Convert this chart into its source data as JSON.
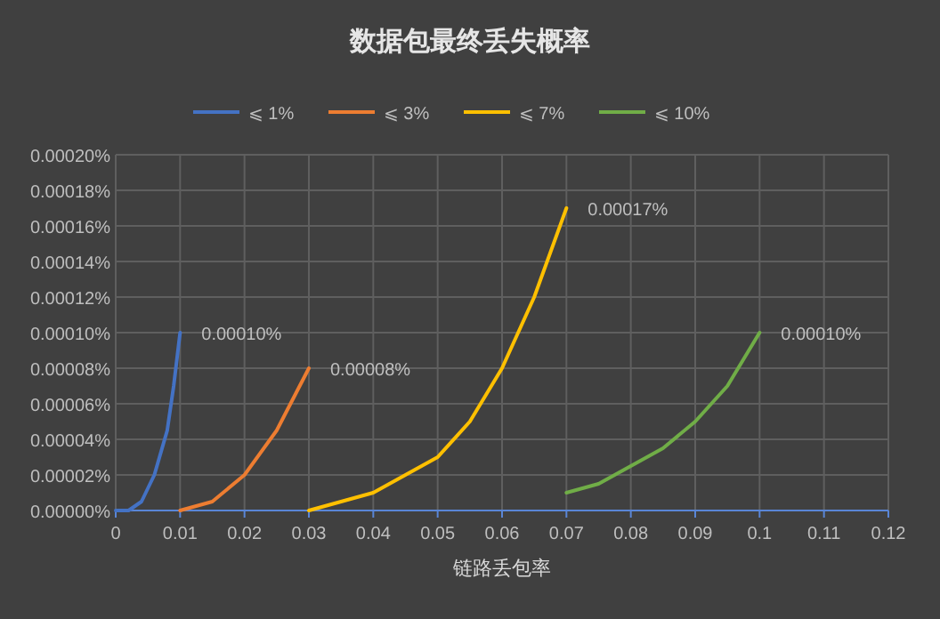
{
  "chart_data": {
    "type": "line",
    "title": "数据包最终丢失概率",
    "xlabel": "链路丢包率",
    "legend": "top",
    "grid": true,
    "xlim": [
      0,
      0.12
    ],
    "xticks": [
      0,
      0.01,
      0.02,
      0.03,
      0.04,
      0.05,
      0.06,
      0.07,
      0.08,
      0.09,
      0.1,
      0.11,
      0.12
    ],
    "ylim": [
      0,
      0.0002
    ],
    "yticks": [
      {
        "value": 0,
        "label": "0.00000%"
      },
      {
        "value": 2e-05,
        "label": "0.00002%"
      },
      {
        "value": 4e-05,
        "label": "0.00004%"
      },
      {
        "value": 6e-05,
        "label": "0.00006%"
      },
      {
        "value": 8e-05,
        "label": "0.00008%"
      },
      {
        "value": 0.0001,
        "label": "0.00010%"
      },
      {
        "value": 0.00012,
        "label": "0.00012%"
      },
      {
        "value": 0.00014,
        "label": "0.00014%"
      },
      {
        "value": 0.00016,
        "label": "0.00016%"
      },
      {
        "value": 0.00018,
        "label": "0.00018%"
      },
      {
        "value": 0.0002,
        "label": "0.00020%"
      }
    ],
    "series": [
      {
        "name": "⩽ 1%",
        "color": "#4472c4",
        "x": [
          0,
          0.002,
          0.004,
          0.006,
          0.008,
          0.009,
          0.01
        ],
        "values": [
          0,
          0,
          5e-06,
          2e-05,
          4.5e-05,
          7e-05,
          0.0001
        ]
      },
      {
        "name": "⩽ 3%",
        "color": "#ed7d31",
        "x": [
          0.01,
          0.015,
          0.02,
          0.025,
          0.03
        ],
        "values": [
          0,
          5e-06,
          2e-05,
          4.5e-05,
          8e-05
        ]
      },
      {
        "name": "⩽ 7%",
        "color": "#ffc000",
        "x": [
          0.03,
          0.035,
          0.04,
          0.045,
          0.05,
          0.055,
          0.06,
          0.065,
          0.07
        ],
        "values": [
          0,
          5e-06,
          1e-05,
          2e-05,
          3e-05,
          5e-05,
          8e-05,
          0.00012,
          0.00017
        ]
      },
      {
        "name": "⩽ 10%",
        "color": "#70ad47",
        "x": [
          0.07,
          0.075,
          0.08,
          0.085,
          0.09,
          0.095,
          0.1
        ],
        "values": [
          1e-05,
          1.5e-05,
          2.5e-05,
          3.5e-05,
          5e-05,
          7e-05,
          0.0001
        ]
      }
    ],
    "annotations": [
      {
        "text": "0.00010%",
        "x": 0.01,
        "y": 0.0001
      },
      {
        "text": "0.00008%",
        "x": 0.03,
        "y": 8e-05
      },
      {
        "text": "0.00017%",
        "x": 0.07,
        "y": 0.00017
      },
      {
        "text": "0.00010%",
        "x": 0.1,
        "y": 0.0001
      }
    ]
  }
}
